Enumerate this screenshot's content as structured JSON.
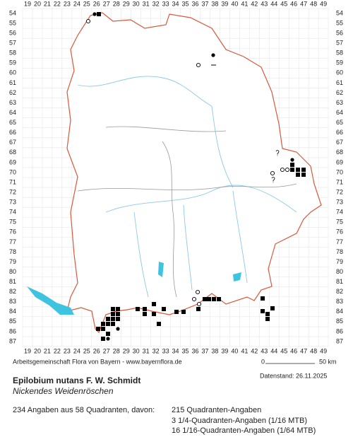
{
  "map": {
    "columns": [
      19,
      20,
      21,
      22,
      23,
      24,
      25,
      26,
      27,
      28,
      29,
      30,
      31,
      32,
      33,
      34,
      35,
      36,
      37,
      38,
      39,
      40,
      41,
      42,
      43,
      44,
      45,
      46,
      47,
      48,
      49
    ],
    "rows": [
      54,
      55,
      56,
      57,
      58,
      59,
      60,
      61,
      62,
      63,
      64,
      65,
      66,
      67,
      68,
      69,
      70,
      71,
      72,
      73,
      74,
      75,
      76,
      77,
      78,
      79,
      80,
      81,
      82,
      83,
      84,
      85,
      86,
      87
    ],
    "credit": "Arbeitsgemeinschaft Flora von Bayern - www.bayernflora.de",
    "scale_start": "0",
    "scale_end": "50 km",
    "date": "Datenstand: 26.11.2025"
  },
  "species": {
    "name": "Epilobium nutans F. W. Schmidt",
    "common_name": "Nickendes Weidenröschen"
  },
  "summary": {
    "total": "234 Angaben aus 58 Quadranten, davon:",
    "lines": [
      "215 Quadranten-Angaben",
      "3 1/4-Quadranten-Angaben (1/16 MTB)",
      "16 1/16-Quadranten-Angaben (1/64 MTB)"
    ]
  }
}
